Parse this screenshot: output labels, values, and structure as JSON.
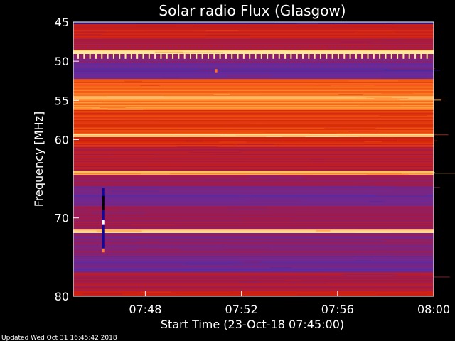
{
  "chart_data": {
    "type": "heatmap",
    "title": "Solar radio Flux (Glasgow)",
    "xlabel": "Start Time (23-Oct-18 07:45:00)",
    "ylabel": "Frequency [MHz]",
    "footer": "Updated Wed Oct 31 16:45:42 2018",
    "x_range_minutes": [
      45,
      60
    ],
    "x_ticks": [
      {
        "minute": 48,
        "label": "07:48"
      },
      {
        "minute": 52,
        "label": "07:52"
      },
      {
        "minute": 56,
        "label": "07:56"
      },
      {
        "minute": 60,
        "label": "08:00"
      }
    ],
    "y_range_mhz": [
      45,
      80
    ],
    "y_reversed": true,
    "y_ticks": [
      {
        "mhz": 45,
        "label": "45"
      },
      {
        "mhz": 50,
        "label": "50"
      },
      {
        "mhz": 55,
        "label": "55"
      },
      {
        "mhz": 60,
        "label": "60"
      },
      {
        "mhz": 70,
        "label": "70"
      },
      {
        "mhz": 80,
        "label": "80"
      }
    ],
    "colormap": [
      "#1b0f6e",
      "#3a2aa0",
      "#6a2a9a",
      "#a01a4a",
      "#d0200f",
      "#f05010",
      "#ff9030",
      "#ffe8a0"
    ],
    "bands": [
      {
        "from": 45.0,
        "to": 45.3,
        "level": 0.05
      },
      {
        "from": 45.3,
        "to": 47.2,
        "level": 0.55
      },
      {
        "from": 47.2,
        "to": 48.6,
        "level": 0.45
      },
      {
        "from": 48.6,
        "to": 49.1,
        "level": 0.98
      },
      {
        "from": 49.1,
        "to": 50.3,
        "level": 0.35
      },
      {
        "from": 50.3,
        "to": 52.3,
        "level": 0.28
      },
      {
        "from": 52.3,
        "to": 53.2,
        "level": 0.72
      },
      {
        "from": 53.2,
        "to": 54.5,
        "level": 0.78
      },
      {
        "from": 54.5,
        "to": 55.0,
        "level": 0.9
      },
      {
        "from": 55.0,
        "to": 56.3,
        "level": 0.82
      },
      {
        "from": 56.3,
        "to": 58.8,
        "level": 0.66
      },
      {
        "from": 58.8,
        "to": 59.4,
        "level": 0.7
      },
      {
        "from": 59.4,
        "to": 59.7,
        "level": 0.95
      },
      {
        "from": 59.7,
        "to": 61.0,
        "level": 0.6
      },
      {
        "from": 61.0,
        "to": 64.0,
        "level": 0.48
      },
      {
        "from": 64.0,
        "to": 64.5,
        "level": 0.88
      },
      {
        "from": 64.5,
        "to": 66.0,
        "level": 0.4
      },
      {
        "from": 66.0,
        "to": 68.5,
        "level": 0.3
      },
      {
        "from": 68.5,
        "to": 71.5,
        "level": 0.42
      },
      {
        "from": 71.5,
        "to": 72.0,
        "level": 0.95
      },
      {
        "from": 72.0,
        "to": 75.0,
        "level": 0.36
      },
      {
        "from": 75.0,
        "to": 77.0,
        "level": 0.3
      },
      {
        "from": 77.0,
        "to": 79.4,
        "level": 0.45
      },
      {
        "from": 79.4,
        "to": 80.0,
        "level": 0.55
      }
    ],
    "periodic_ticks": {
      "mhz_from": 49.0,
      "mhz_to": 49.7,
      "count": 60,
      "color": "#ffe8a0"
    },
    "events": [
      {
        "minute": 46.25,
        "mhz_from": 66.2,
        "mhz_to": 74.3,
        "color": "#0a0aa0"
      },
      {
        "minute": 46.25,
        "mhz_from": 67.2,
        "mhz_to": 69.0,
        "color": "#000000"
      },
      {
        "minute": 46.25,
        "mhz_from": 70.3,
        "mhz_to": 70.9,
        "color": "#ffffff"
      },
      {
        "minute": 46.25,
        "mhz_from": 73.9,
        "mhz_to": 74.4,
        "color": "#ff8030"
      },
      {
        "minute": 50.95,
        "mhz_from": 51.0,
        "mhz_to": 51.5,
        "color": "#ff7020"
      }
    ]
  }
}
